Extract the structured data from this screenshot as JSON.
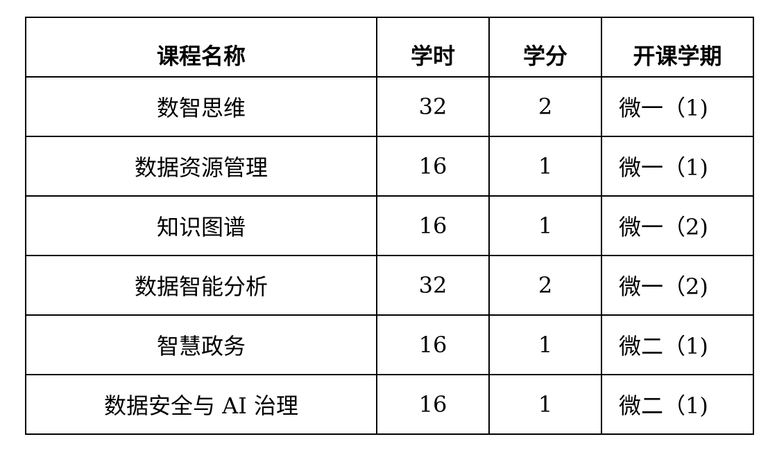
{
  "table": {
    "headers": [
      "课程名称",
      "学时",
      "学分",
      "开课学期"
    ],
    "rows": [
      [
        "数智思维",
        "32",
        "2",
        "微一（1)"
      ],
      [
        "数据资源管理",
        "16",
        "1",
        "微一（1)"
      ],
      [
        "知识图谱",
        "16",
        "1",
        "微一（2)"
      ],
      [
        "数据智能分析",
        "32",
        "2",
        "微一（2)"
      ],
      [
        "智慧政务",
        "16",
        "1",
        "微二（1)"
      ],
      [
        "数据安全与 AI 治理",
        "16",
        "1",
        "微二（1)"
      ]
    ]
  }
}
